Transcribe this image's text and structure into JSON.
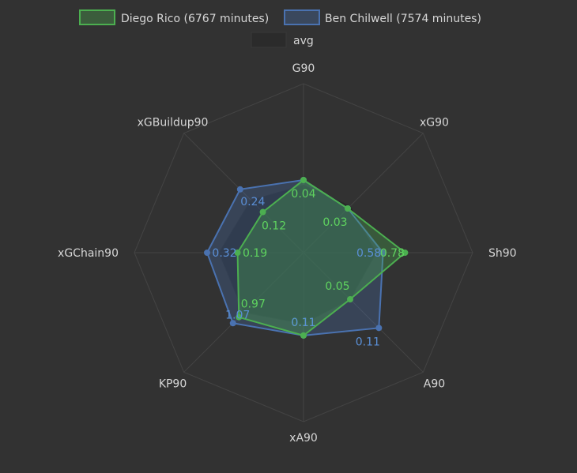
{
  "chart_data": {
    "type": "radar",
    "axes": [
      "G90",
      "xG90",
      "Sh90",
      "A90",
      "xA90",
      "KP90",
      "xGChain90",
      "xGBuildup90"
    ],
    "series": [
      {
        "name": "Diego Rico (6767 minutes)",
        "color": "#4caf50",
        "values": [
          0.04,
          0.03,
          0.78,
          0.05,
          0.11,
          0.97,
          0.19,
          0.12
        ],
        "fraction": [
          0.43,
          0.37,
          0.6,
          0.39,
          0.49,
          0.54,
          0.39,
          0.34
        ]
      },
      {
        "name": "Ben Chilwell (7574 minutes)",
        "color": "#4a72b0",
        "values": [
          0.04,
          0.03,
          0.58,
          0.11,
          0.11,
          1.07,
          0.32,
          0.24
        ],
        "fraction": [
          0.43,
          0.37,
          0.47,
          0.63,
          0.49,
          0.59,
          0.57,
          0.53
        ]
      },
      {
        "name": "avg",
        "color": "#2b2b2b",
        "values": [],
        "fraction": [
          0.4,
          0.39,
          0.43,
          0.39,
          0.42,
          0.5,
          0.5,
          0.44
        ]
      }
    ],
    "value_labels": {
      "diego": [
        "0.04",
        "0.03",
        "0.78",
        "0.05",
        "0.11",
        "0.97",
        "0.19",
        "0.12"
      ],
      "ben": [
        "",
        "",
        "0.58",
        "0.11",
        "0.11",
        "1.07",
        "0.32",
        "0.24"
      ]
    }
  }
}
